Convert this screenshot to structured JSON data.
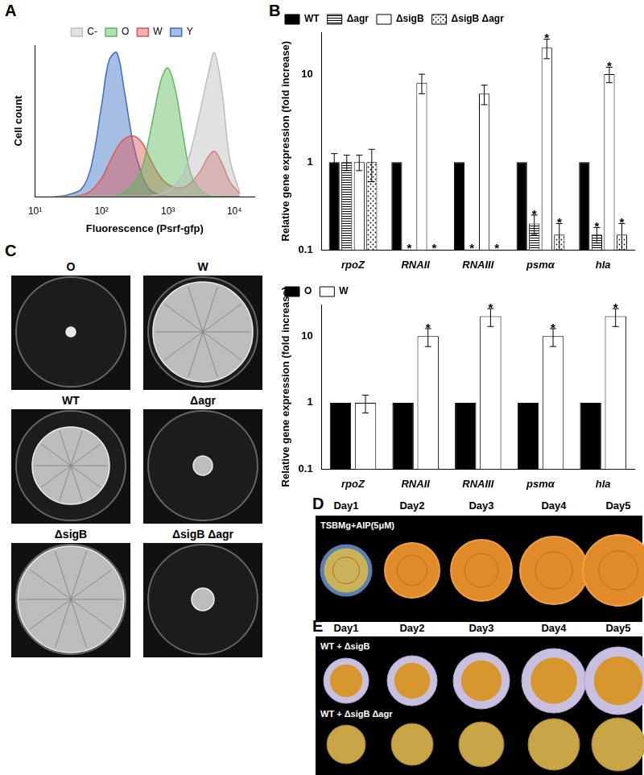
{
  "panel_labels": [
    "A",
    "B",
    "C",
    "D",
    "E"
  ],
  "chart_data": [
    {
      "type": "line",
      "x_label": "Fluorescence (Psrf-gfp)",
      "y_label": "Cell count",
      "x": [
        20,
        30,
        50,
        70,
        100,
        130,
        170,
        220,
        300,
        400,
        500,
        650,
        800,
        1000,
        1300,
        1700,
        2200,
        3000,
        4000,
        5000,
        6500,
        8500,
        12000
      ],
      "series": [
        {
          "name": "C-",
          "color": "#bdbdbd",
          "values": [
            0,
            0,
            0,
            0,
            0,
            0,
            0,
            0,
            0,
            0,
            0,
            1,
            2,
            4,
            8,
            15,
            30,
            55,
            80,
            95,
            70,
            25,
            3
          ]
        },
        {
          "name": "O",
          "color": "#5cb85c",
          "values": [
            0,
            0,
            0,
            0,
            0,
            0,
            1,
            3,
            8,
            18,
            35,
            60,
            78,
            85,
            70,
            40,
            15,
            5,
            1,
            0,
            0,
            0,
            0
          ]
        },
        {
          "name": "W",
          "color": "#e05555",
          "values": [
            0,
            0,
            1,
            4,
            12,
            22,
            32,
            38,
            40,
            36,
            28,
            18,
            12,
            8,
            6,
            6,
            9,
            16,
            26,
            30,
            22,
            10,
            2
          ]
        },
        {
          "name": "Y",
          "color": "#3a6fc4",
          "values": [
            0,
            1,
            5,
            20,
            60,
            90,
            95,
            70,
            35,
            15,
            6,
            2,
            1,
            0,
            0,
            0,
            0,
            0,
            0,
            0,
            0,
            0,
            0
          ]
        }
      ],
      "log": "x",
      "xlim": [
        10,
        20000
      ],
      "xticks": [
        {
          "value": 10,
          "label": "10¹"
        },
        {
          "value": 100,
          "label": "10²"
        },
        {
          "value": 1000,
          "label": "10³"
        },
        {
          "value": 10000,
          "label": "10⁴"
        }
      ],
      "ylim": [
        0,
        100
      ],
      "tick_labels": "x",
      "legend": "top",
      "grid": false
    },
    {
      "type": "bar",
      "y_label": "Relative gene expression (fold increase)",
      "categories": [
        "rpoZ",
        "RNAII",
        "RNAIII",
        "psmα",
        "hla"
      ],
      "series": [
        {
          "name": "WT",
          "color": "#000000",
          "values": [
            1,
            1,
            1,
            1,
            1
          ],
          "errors": [
            0.25,
            null,
            null,
            null,
            null
          ],
          "significance": [
            null,
            null,
            null,
            null,
            null
          ]
        },
        {
          "name": "Δagr",
          "color": "#ffffff",
          "values": [
            1,
            null,
            null,
            0.2,
            0.15
          ],
          "errors": [
            0.2,
            null,
            null,
            0.05,
            0.03
          ],
          "significance": [
            null,
            "*",
            "*",
            "*",
            "*"
          ]
        },
        {
          "name": "ΔsigB",
          "color": "#ffffff",
          "values": [
            1,
            8,
            6,
            20,
            10
          ],
          "errors": [
            0.2,
            2,
            1.5,
            5,
            2
          ],
          "significance": [
            null,
            null,
            null,
            "*",
            "*"
          ]
        },
        {
          "name": "ΔsigB Δagr",
          "color": "#ffffff",
          "values": [
            1,
            null,
            null,
            0.15,
            0.15
          ],
          "errors": [
            0.4,
            null,
            null,
            0.05,
            0.05
          ],
          "significance": [
            null,
            "*",
            "*",
            "*",
            "*"
          ]
        }
      ],
      "log": "y",
      "ylim": [
        0.1,
        30
      ],
      "yticks": [
        0.1,
        1,
        10
      ],
      "legend": "upper left",
      "grid": false
    },
    {
      "type": "bar",
      "y_label": "Relative gene expression (fold increase)",
      "categories": [
        "rpoZ",
        "RNAII",
        "RNAIII",
        "psmα",
        "hla"
      ],
      "series": [
        {
          "name": "O",
          "color": "#000000",
          "values": [
            1,
            1,
            1,
            1,
            1
          ],
          "errors": [
            null,
            null,
            null,
            null,
            null
          ],
          "significance": [
            null,
            null,
            null,
            null,
            null
          ]
        },
        {
          "name": "W",
          "color": "#ffffff",
          "values": [
            1,
            10,
            20,
            10,
            20
          ],
          "errors": [
            0.3,
            3,
            6,
            3,
            6
          ],
          "significance": [
            null,
            "*",
            "*",
            "*",
            "*"
          ]
        }
      ],
      "log": "y",
      "ylim": [
        0.1,
        30
      ],
      "yticks": [
        0.1,
        1,
        10
      ],
      "legend": "upper left",
      "grid": false
    }
  ],
  "plates": {
    "labels": [
      "O",
      "W",
      "WT",
      "Δagr",
      "ΔsigB",
      "ΔsigB Δagr"
    ]
  },
  "timecourse": {
    "days": [
      "Day1",
      "Day2",
      "Day3",
      "Day4",
      "Day5"
    ],
    "D_title": "TSBMg+AIP(5μM)",
    "E_rows": [
      "WT + ΔsigB",
      "WT + ΔsigB Δagr"
    ]
  }
}
